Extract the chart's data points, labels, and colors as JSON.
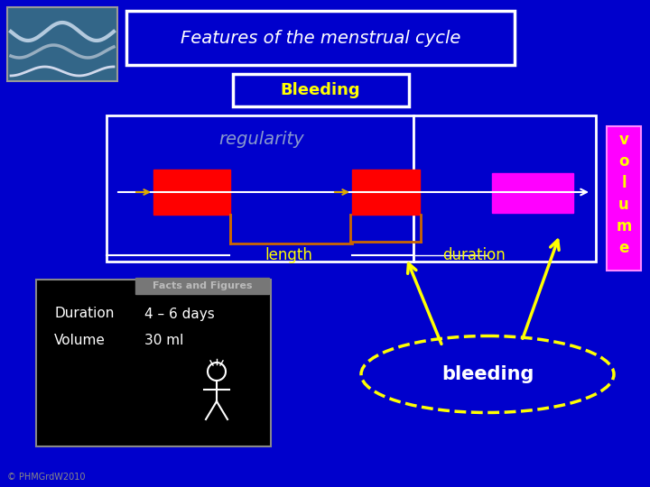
{
  "bg_color": "#0000CC",
  "title": "Features of the menstrual cycle",
  "title_text_color": "#FFFFFF",
  "title_border_color": "#FFFFFF",
  "bleeding_text": "Bleeding",
  "bleeding_text_color": "#FFFF00",
  "bleeding_border_color": "#FFFFFF",
  "regularity_text": "regularity",
  "regularity_text_color": "#8899CC",
  "length_text": "length",
  "length_text_color": "#FFFF00",
  "duration_text": "duration",
  "duration_text_color": "#FFFF00",
  "volume_letters": [
    "v",
    "o",
    "l",
    "u",
    "m",
    "e"
  ],
  "volume_text_color": "#FFFF00",
  "volume_box_color": "#FF00FF",
  "red_box_color": "#FF0000",
  "magenta_box_color": "#FF00FF",
  "timeline_color": "#FFFFFF",
  "bracket_color": "#CC6600",
  "facts_title": "Facts and Figures",
  "facts_title_color": "#BBBBBB",
  "facts_bg": "#000000",
  "facts_border": "#888888",
  "duration_label": "Duration",
  "duration_value": "4 – 6 days",
  "volume_label": "Volume",
  "volume_value": "30 ml",
  "facts_text_color": "#FFFFFF",
  "bleeding_ellipse_color": "#FFFF00",
  "bleeding_ellipse_text": "bleeding",
  "bleeding_ellipse_text_color": "#FFFFFF",
  "arrow_color": "#FFFF00",
  "copyright": "© PHMGrdW2010",
  "copyright_color": "#888888",
  "wave_bg": "#336688"
}
